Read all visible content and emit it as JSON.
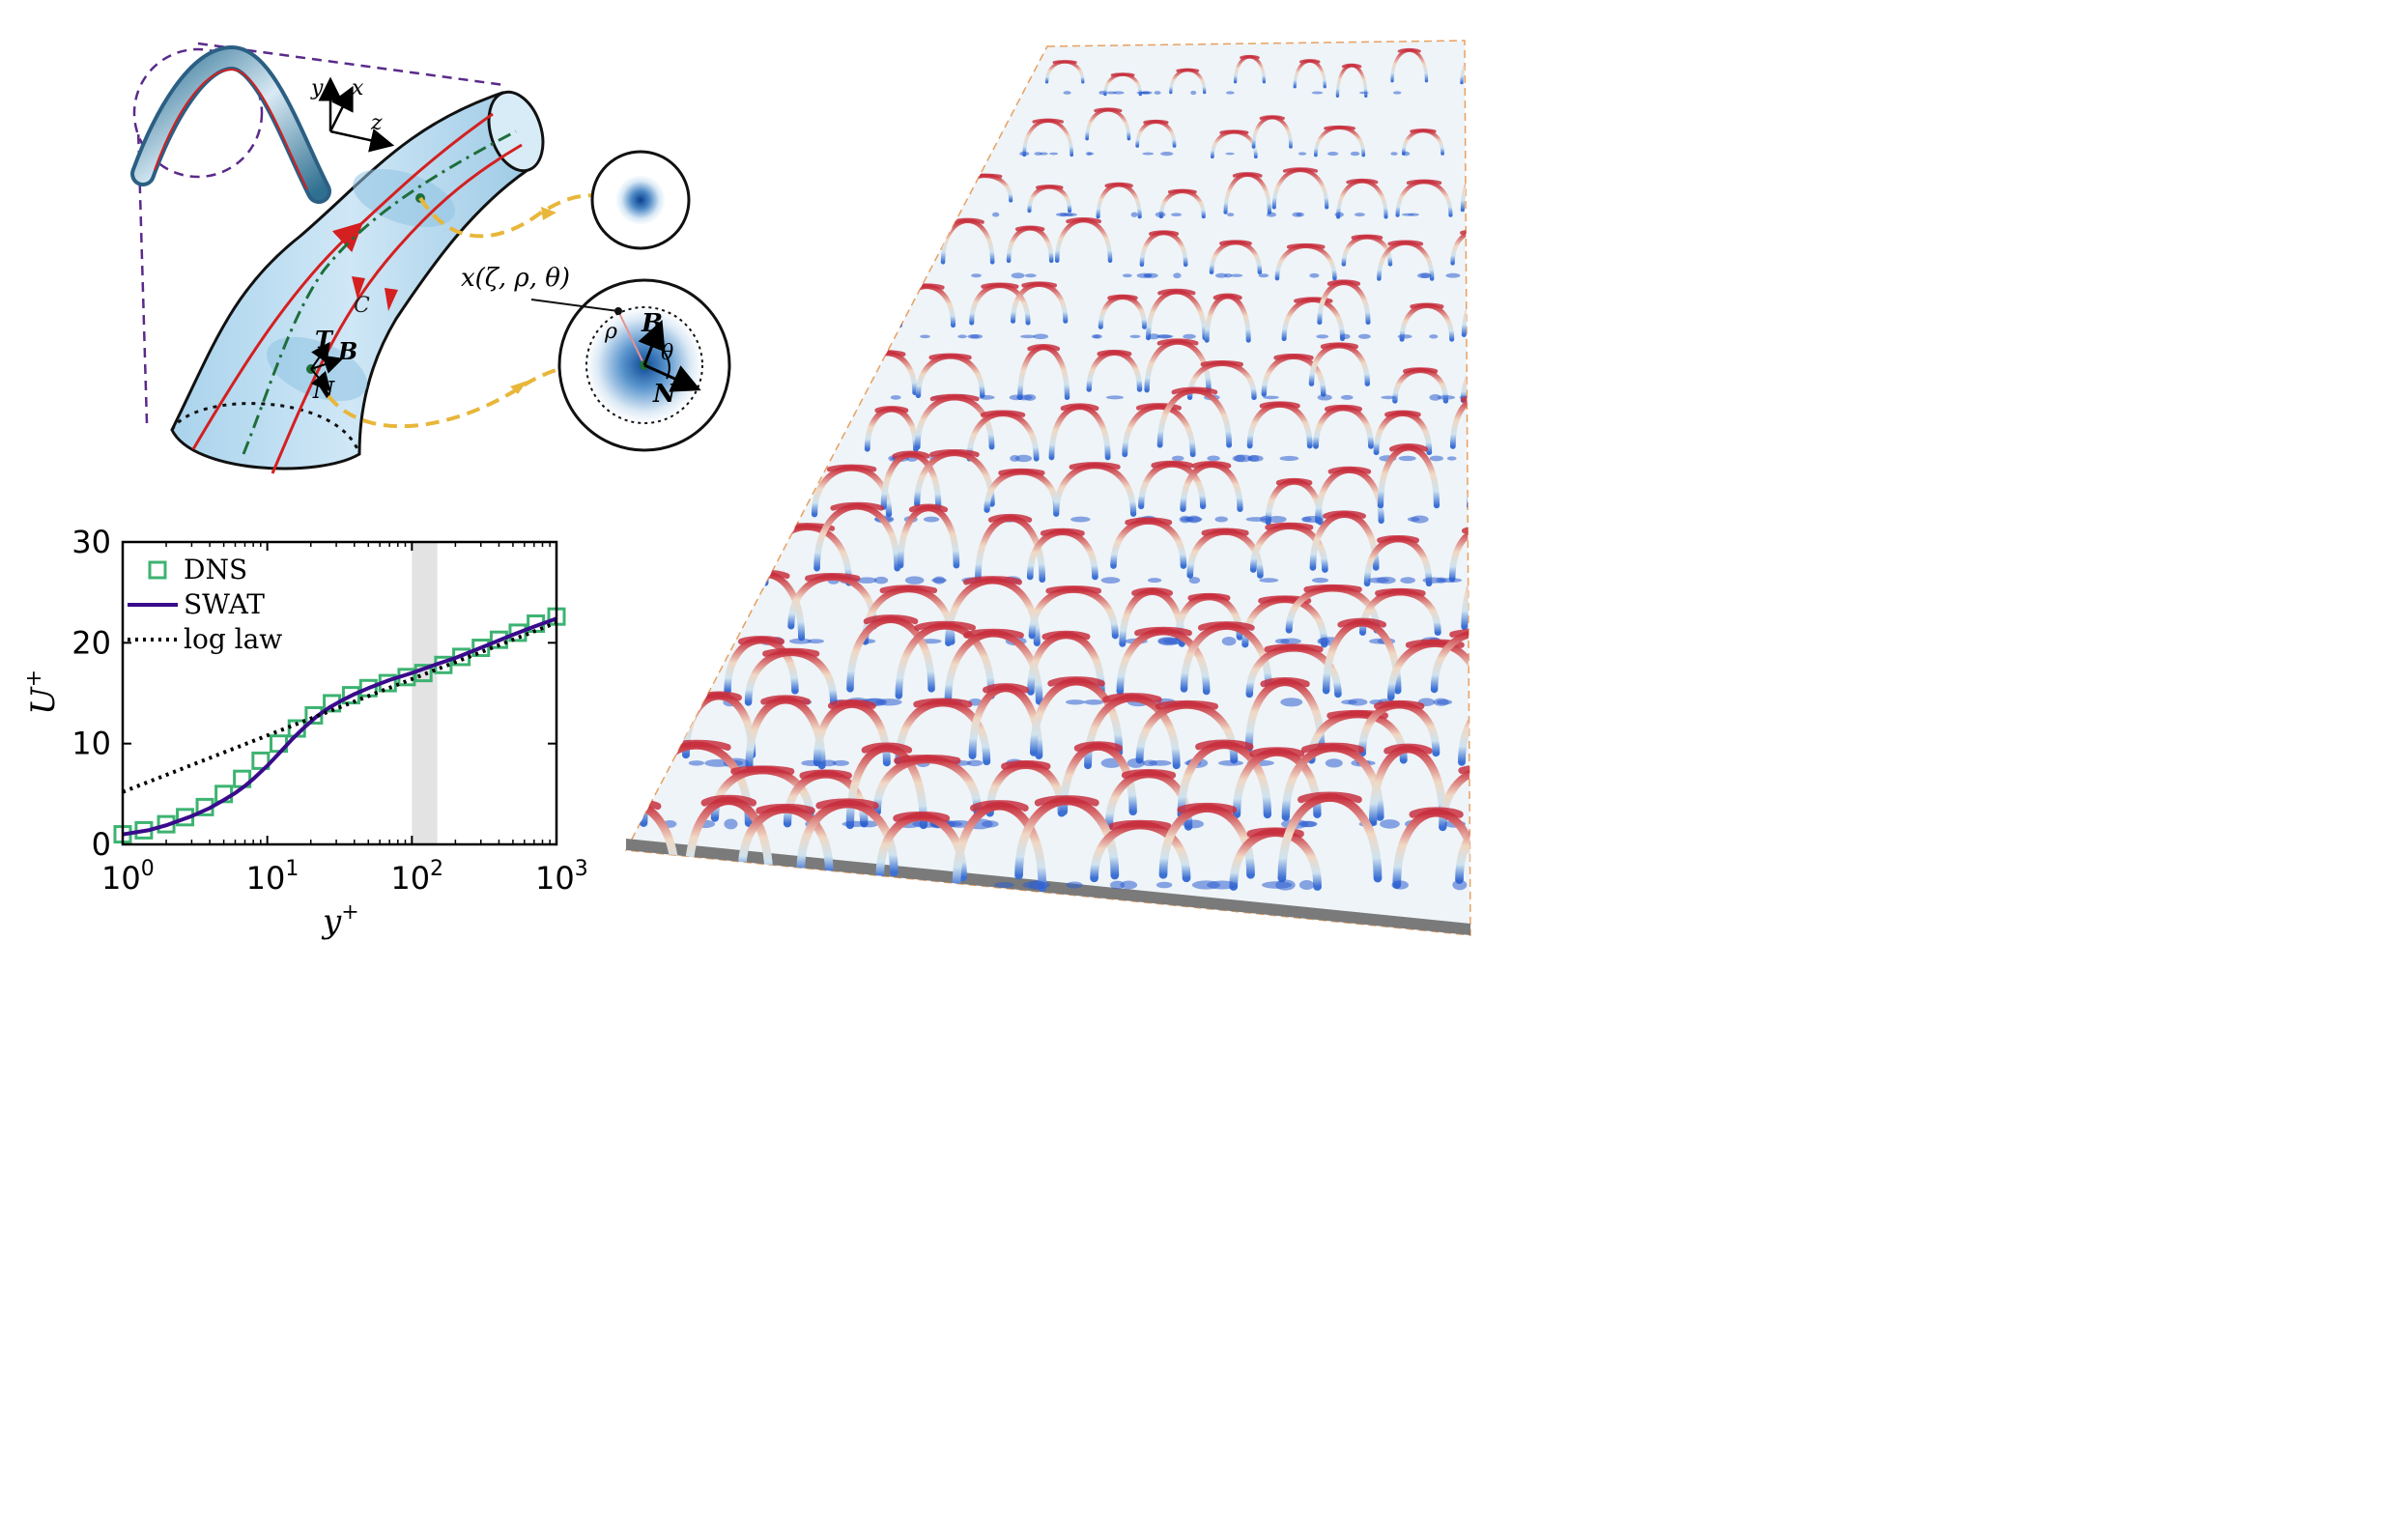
{
  "schematic": {
    "axes": {
      "y": "y",
      "x": "x",
      "z": "z"
    },
    "curve_label": "C",
    "frame": {
      "T": "T",
      "B": "B",
      "N": "N"
    },
    "position_label": "x(ζ, ρ, θ)",
    "cross_section": {
      "rho": "ρ",
      "theta": "θ",
      "B": "B",
      "N": "N"
    }
  },
  "chart_data": {
    "type": "line",
    "xlabel": "y+",
    "ylabel": "U+",
    "xscale": "log",
    "xlim": [
      1,
      1000
    ],
    "ylim": [
      0,
      30
    ],
    "x_ticks": [
      1,
      10,
      100,
      1000
    ],
    "x_tick_labels": [
      {
        "base": "10",
        "exp": "0"
      },
      {
        "base": "10",
        "exp": "1"
      },
      {
        "base": "10",
        "exp": "2"
      },
      {
        "base": "10",
        "exp": "3"
      }
    ],
    "y_ticks": [
      "0",
      "10",
      "20",
      "30"
    ],
    "shaded_band": [
      100,
      150
    ],
    "legend_position": "top-left",
    "grid": false,
    "series": [
      {
        "name": "DNS",
        "style": "markers-square",
        "color": "#3cb371",
        "x": [
          1.0,
          1.4,
          2.0,
          2.7,
          3.7,
          5.0,
          6.7,
          9.0,
          12,
          16,
          21,
          28,
          38,
          50,
          68,
          92,
          120,
          165,
          220,
          300,
          400,
          540,
          720,
          1000
        ],
        "y": [
          1.0,
          1.4,
          2.0,
          2.7,
          3.7,
          5.0,
          6.5,
          8.3,
          10.0,
          11.5,
          12.8,
          14.0,
          14.8,
          15.5,
          16.0,
          16.6,
          17.0,
          17.8,
          18.6,
          19.5,
          20.3,
          21.0,
          21.9,
          22.6
        ]
      },
      {
        "name": "SWAT",
        "style": "solid",
        "color": "#3a0a8c",
        "x": [
          1,
          1.5,
          2,
          3,
          4,
          5,
          6,
          7,
          8,
          10,
          12,
          15,
          18,
          22,
          27,
          33,
          40,
          50,
          70,
          100,
          150,
          200,
          300,
          500,
          700,
          1000
        ],
        "y": [
          1.0,
          1.4,
          1.9,
          2.8,
          3.6,
          4.4,
          5.1,
          5.8,
          6.5,
          7.8,
          9.0,
          10.5,
          11.6,
          12.7,
          13.6,
          14.3,
          14.9,
          15.5,
          16.3,
          17.0,
          17.9,
          18.5,
          19.5,
          20.8,
          21.6,
          22.4
        ]
      },
      {
        "name": "log law",
        "style": "dotted",
        "color": "#000000",
        "x": [
          1,
          1000
        ],
        "y": [
          5.2,
          22.0
        ]
      }
    ]
  },
  "colors": {
    "tube_fill": "#bfe0f2",
    "vortex_line": "#d42020",
    "centerline": "#1f6e3a",
    "arrow_dash": "#e8b63a",
    "bracket": "#5a2a8a",
    "swat_line": "#3a0a8c",
    "dns_marker": "#3cb371",
    "band": "#e3e3e3",
    "field_red": "#c83040",
    "field_blue": "#2f5fd0"
  }
}
